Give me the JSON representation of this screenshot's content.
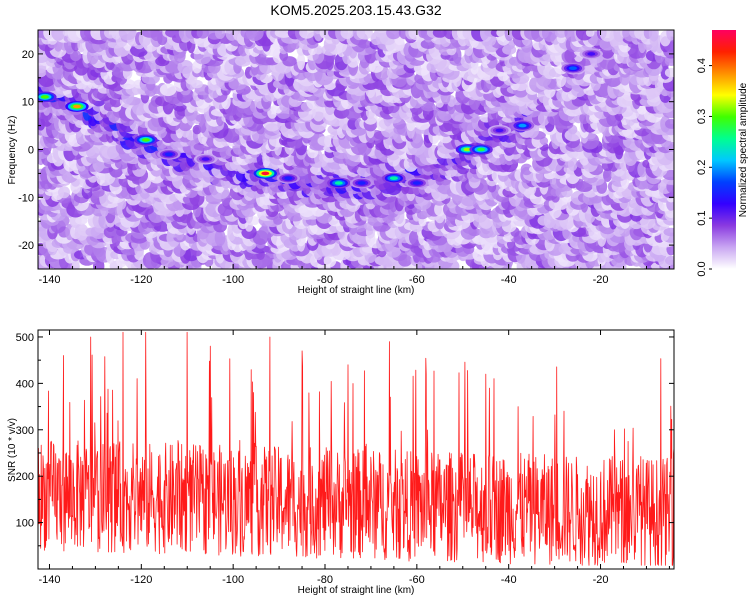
{
  "title": "KOM5.2025.203.15.43.G32",
  "chart_data": [
    {
      "type": "heatmap",
      "xlabel": "Height of straight line (km)",
      "ylabel": "Frequency (Hz)",
      "xlim": [
        -142.5,
        -4
      ],
      "ylim": [
        -25,
        25
      ],
      "xticks": [
        -140,
        -120,
        -100,
        -80,
        -60,
        -40,
        -20
      ],
      "yticks": [
        -20,
        -10,
        0,
        10,
        20
      ],
      "colorbar": {
        "label": "Normalized spectral amplitude",
        "range": [
          0,
          0.47
        ],
        "ticks": [
          0.0,
          0.1,
          0.2,
          0.3,
          0.4
        ],
        "colors": [
          "#ffffff",
          "#c9a6f2",
          "#8a3ae0",
          "#3300ff",
          "#0040ff",
          "#00c8ff",
          "#00ff90",
          "#40ff00",
          "#ffff00",
          "#ff9000",
          "#ff2000",
          "#ff0060"
        ]
      },
      "ridge": [
        {
          "x": -142,
          "y": 12
        },
        {
          "x": -136,
          "y": 10
        },
        {
          "x": -130,
          "y": 7
        },
        {
          "x": -124,
          "y": 4
        },
        {
          "x": -118,
          "y": 1
        },
        {
          "x": -112,
          "y": -1
        },
        {
          "x": -106,
          "y": -3
        },
        {
          "x": -100,
          "y": -4
        },
        {
          "x": -94,
          "y": -5
        },
        {
          "x": -88,
          "y": -6
        },
        {
          "x": -80,
          "y": -7
        },
        {
          "x": -72,
          "y": -7
        },
        {
          "x": -64,
          "y": -6
        },
        {
          "x": -58,
          "y": -5
        },
        {
          "x": -52,
          "y": -2
        },
        {
          "x": -46,
          "y": 1
        },
        {
          "x": -40,
          "y": 4
        },
        {
          "x": -34,
          "y": 8
        }
      ],
      "hotspots": [
        {
          "x": -141,
          "y": 11,
          "v": 0.3
        },
        {
          "x": -134,
          "y": 9,
          "v": 0.38
        },
        {
          "x": -119,
          "y": 2,
          "v": 0.3
        },
        {
          "x": -114,
          "y": -1,
          "v": 0.15
        },
        {
          "x": -106,
          "y": -2,
          "v": 0.12
        },
        {
          "x": -93,
          "y": -5,
          "v": 0.45
        },
        {
          "x": -88,
          "y": -6,
          "v": 0.15
        },
        {
          "x": -77,
          "y": -7,
          "v": 0.25
        },
        {
          "x": -72,
          "y": -7,
          "v": 0.15
        },
        {
          "x": -65,
          "y": -6,
          "v": 0.25
        },
        {
          "x": -60,
          "y": -7,
          "v": 0.15
        },
        {
          "x": -49,
          "y": 0,
          "v": 0.32
        },
        {
          "x": -46,
          "y": 0,
          "v": 0.28
        },
        {
          "x": -42,
          "y": 4,
          "v": 0.12
        },
        {
          "x": -37,
          "y": 5,
          "v": 0.2
        },
        {
          "x": -26,
          "y": 17,
          "v": 0.18
        },
        {
          "x": -22,
          "y": 20,
          "v": 0.12
        }
      ]
    },
    {
      "type": "line",
      "xlabel": "Height of straight line (km)",
      "ylabel": "SNR (10 * v/v)",
      "xlim": [
        -142.5,
        -4
      ],
      "ylim": [
        0,
        515
      ],
      "xticks": [
        -140,
        -120,
        -100,
        -80,
        -60,
        -40,
        -20
      ],
      "yticks": [
        100,
        200,
        300,
        400,
        500
      ],
      "series": [
        {
          "color": "#ff1a1a",
          "x_range": [
            -142.5,
            -4
          ],
          "baseline": 160,
          "trend_end": 120,
          "spread": 120,
          "peaks": [
            {
              "x": -137,
              "y": 460
            },
            {
              "x": -131,
              "y": 500
            },
            {
              "x": -124,
              "y": 510
            },
            {
              "x": -119,
              "y": 510
            },
            {
              "x": -110,
              "y": 510
            },
            {
              "x": -105,
              "y": 480
            },
            {
              "x": -92,
              "y": 500
            },
            {
              "x": -85,
              "y": 470
            },
            {
              "x": -75,
              "y": 440
            },
            {
              "x": -66,
              "y": 490
            },
            {
              "x": -58,
              "y": 420
            },
            {
              "x": -45,
              "y": 420
            },
            {
              "x": -38,
              "y": 350
            },
            {
              "x": -28,
              "y": 340
            },
            {
              "x": -17,
              "y": 300
            }
          ]
        }
      ]
    }
  ]
}
